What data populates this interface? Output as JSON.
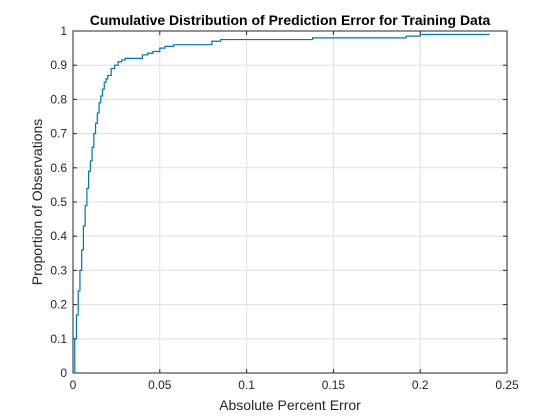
{
  "chart_data": {
    "type": "line",
    "title": "Cumulative Distribution of Prediction Error for Training Data",
    "xlabel": "Absolute Percent Error",
    "ylabel": "Proportion of Observations",
    "xlim": [
      0,
      0.25
    ],
    "ylim": [
      0,
      1
    ],
    "grid": true,
    "legend": "none",
    "x_ticks": [
      0,
      0.05,
      0.1,
      0.15,
      0.2,
      0.25
    ],
    "x_tick_labels": [
      "0",
      "0.05",
      "0.1",
      "0.15",
      "0.2",
      "0.25"
    ],
    "y_ticks": [
      0,
      0.1,
      0.2,
      0.3,
      0.4,
      0.5,
      0.6,
      0.7,
      0.8,
      0.9,
      1
    ],
    "y_tick_labels": [
      "0",
      "0.1",
      "0.2",
      "0.3",
      "0.4",
      "0.5",
      "0.6",
      "0.7",
      "0.8",
      "0.9",
      "1"
    ],
    "color": "#0072BD",
    "series": [
      {
        "x": [
          0,
          0.001,
          0.002,
          0.003,
          0.004,
          0.005,
          0.006,
          0.007,
          0.008,
          0.009,
          0.01,
          0.011,
          0.012,
          0.013,
          0.014,
          0.015,
          0.016,
          0.017,
          0.018,
          0.019,
          0.02,
          0.022,
          0.024,
          0.026,
          0.028,
          0.03,
          0.033,
          0.036,
          0.04,
          0.043,
          0.046,
          0.05,
          0.053,
          0.058,
          0.065,
          0.08,
          0.085,
          0.1,
          0.12,
          0.138,
          0.15,
          0.17,
          0.192,
          0.2,
          0.23,
          0.24
        ],
        "y": [
          0,
          0.1,
          0.17,
          0.24,
          0.3,
          0.36,
          0.43,
          0.49,
          0.54,
          0.59,
          0.62,
          0.66,
          0.7,
          0.73,
          0.76,
          0.79,
          0.81,
          0.83,
          0.85,
          0.86,
          0.87,
          0.89,
          0.9,
          0.91,
          0.915,
          0.92,
          0.92,
          0.92,
          0.93,
          0.935,
          0.94,
          0.95,
          0.955,
          0.96,
          0.96,
          0.97,
          0.975,
          0.975,
          0.975,
          0.98,
          0.98,
          0.98,
          0.985,
          0.99,
          0.99,
          0.99
        ]
      }
    ]
  }
}
